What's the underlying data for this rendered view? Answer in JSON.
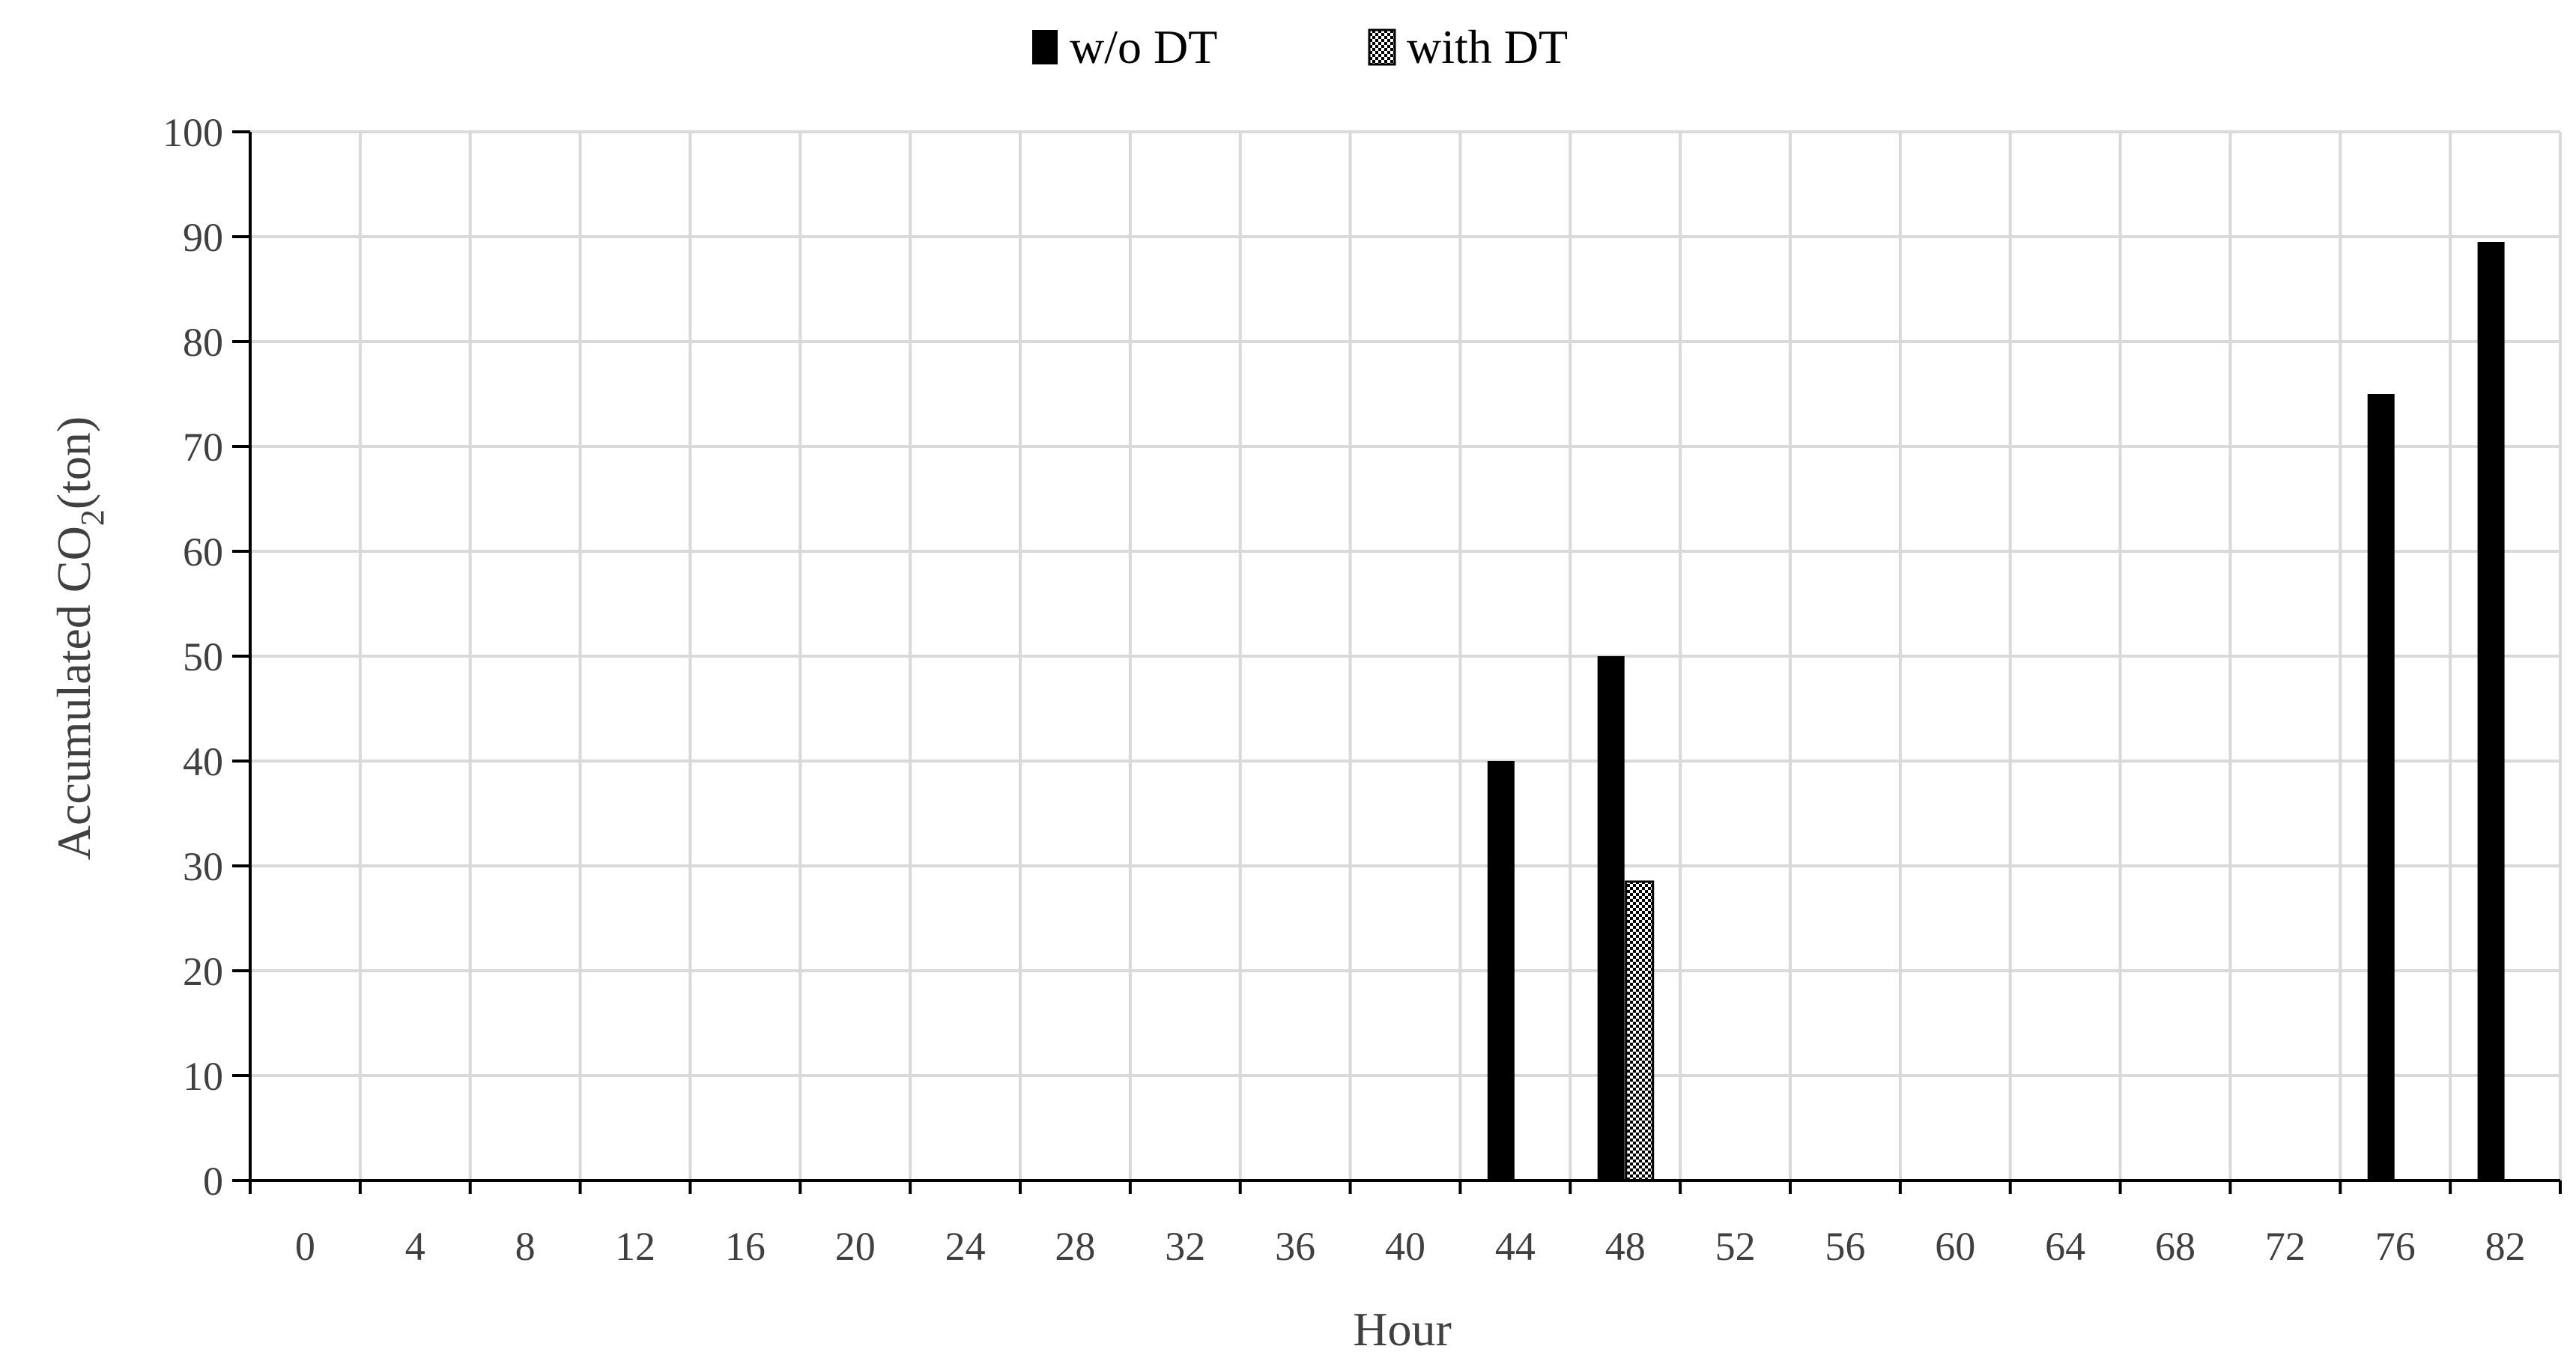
{
  "chart_data": {
    "type": "bar",
    "title": "",
    "xlabel": "Hour",
    "ylabel": {
      "prefix": "Accumulated CO",
      "subscript": "2",
      "suffix": "(ton)"
    },
    "categories": [
      "0",
      "4",
      "8",
      "12",
      "16",
      "20",
      "24",
      "28",
      "32",
      "36",
      "40",
      "44",
      "48",
      "52",
      "56",
      "60",
      "64",
      "68",
      "72",
      "76",
      "82"
    ],
    "series": [
      {
        "name": "w/o DT",
        "fill": "solid",
        "values": [
          0,
          0,
          0,
          0,
          0,
          0,
          0,
          0,
          0,
          0,
          0,
          40,
          50,
          0,
          0,
          0,
          0,
          0,
          0,
          75,
          89.5
        ]
      },
      {
        "name": "with DT",
        "fill": "checker",
        "values": [
          0,
          0,
          0,
          0,
          0,
          0,
          0,
          0,
          0,
          0,
          0,
          0,
          28.5,
          0,
          0,
          0,
          0,
          0,
          0,
          0,
          0
        ]
      }
    ],
    "ylim": [
      0,
      100
    ],
    "yticks": [
      0,
      10,
      20,
      30,
      40,
      50,
      60,
      70,
      80,
      90,
      100
    ],
    "grid": true,
    "legend_position": "top-center",
    "colors": {
      "bar": "#000000",
      "pattern_light": "#ffffff",
      "grid": "#d9d9d9",
      "text": "#404040"
    }
  }
}
